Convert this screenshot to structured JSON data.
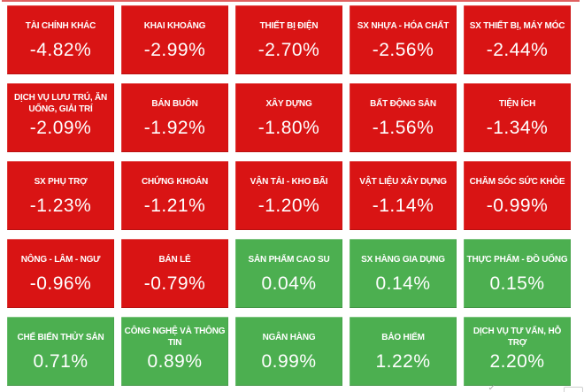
{
  "colors": {
    "negative_tile": "#d91414",
    "positive_tile": "#4caf50",
    "tile_text": "#ffffff",
    "top_line": "#e06060",
    "background": "#ffffff"
  },
  "chart_data": {
    "type": "heatmap",
    "title": "",
    "unit": "%",
    "layout": {
      "columns": 5,
      "rows": 5,
      "order": "worst decline (top-left) to best gain (bottom-right)"
    },
    "items": [
      {
        "label": "TÀI CHÍNH KHÁC",
        "value": -4.82,
        "display": "-4.82%"
      },
      {
        "label": "KHAI KHOÁNG",
        "value": -2.99,
        "display": "-2.99%"
      },
      {
        "label": "THIẾT BỊ ĐIỆN",
        "value": -2.7,
        "display": "-2.70%"
      },
      {
        "label": "SX NHỰA - HÓA CHẤT",
        "value": -2.56,
        "display": "-2.56%"
      },
      {
        "label": "SX THIẾT BỊ, MÁY MÓC",
        "value": -2.44,
        "display": "-2.44%"
      },
      {
        "label": "DỊCH VỤ LƯU TRÚ, ĂN UỐNG, GIẢI TRÍ",
        "value": -2.09,
        "display": "-2.09%"
      },
      {
        "label": "BÁN BUÔN",
        "value": -1.92,
        "display": "-1.92%"
      },
      {
        "label": "XÂY DỰNG",
        "value": -1.8,
        "display": "-1.80%"
      },
      {
        "label": "BẤT ĐỘNG SẢN",
        "value": -1.56,
        "display": "-1.56%"
      },
      {
        "label": "TIỆN ÍCH",
        "value": -1.34,
        "display": "-1.34%"
      },
      {
        "label": "SX PHỤ TRỢ",
        "value": -1.23,
        "display": "-1.23%"
      },
      {
        "label": "CHỨNG KHOÁN",
        "value": -1.21,
        "display": "-1.21%"
      },
      {
        "label": "VẬN TẢI - KHO BÃI",
        "value": -1.2,
        "display": "-1.20%"
      },
      {
        "label": "VẬT LIỆU XÂY DỰNG",
        "value": -1.14,
        "display": "-1.14%"
      },
      {
        "label": "CHĂM SÓC SỨC KHỎE",
        "value": -0.99,
        "display": "-0.99%"
      },
      {
        "label": "NÔNG - LÂM - NGƯ",
        "value": -0.96,
        "display": "-0.96%"
      },
      {
        "label": "BÁN LẺ",
        "value": -0.79,
        "display": "-0.79%"
      },
      {
        "label": "SẢN PHẨM CAO SU",
        "value": 0.04,
        "display": "0.04%"
      },
      {
        "label": "SX HÀNG GIA DỤNG",
        "value": 0.14,
        "display": "0.14%"
      },
      {
        "label": "THỰC PHẨM - ĐỒ UỐNG",
        "value": 0.15,
        "display": "0.15%"
      },
      {
        "label": "CHẾ BIẾN THỦY SẢN",
        "value": 0.71,
        "display": "0.71%"
      },
      {
        "label": "CÔNG NGHỆ VÀ THÔNG TIN",
        "value": 0.89,
        "display": "0.89%"
      },
      {
        "label": "NGÂN HÀNG",
        "value": 0.99,
        "display": "0.99%"
      },
      {
        "label": "BẢO HIỂM",
        "value": 1.22,
        "display": "1.22%"
      },
      {
        "label": "DỊCH VỤ TƯ VẤN, HỖ TRỢ",
        "value": 2.2,
        "display": "2.20%"
      }
    ]
  },
  "artifacts": {
    "checkmark_glyph": "✓"
  }
}
